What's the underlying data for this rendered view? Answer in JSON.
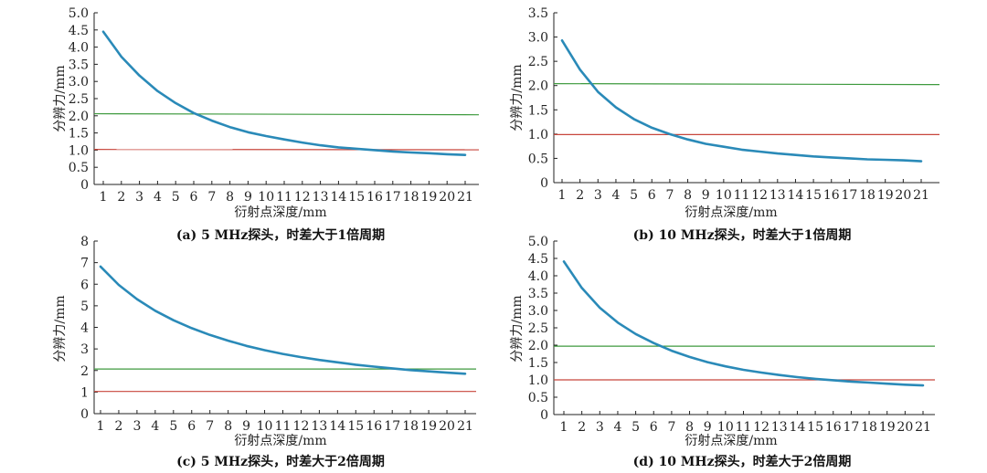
{
  "chart_data": [
    {
      "type": "line",
      "caption": "(a) 5 MHz探头，时差大于1倍周期",
      "xlabel": "衍射点深度/mm",
      "ylabel": "分辨力/mm",
      "x": [
        1,
        2,
        3,
        4,
        5,
        6,
        7,
        8,
        9,
        10,
        11,
        12,
        13,
        14,
        15,
        16,
        17,
        18,
        19,
        20,
        21
      ],
      "ylim": [
        0,
        5.0
      ],
      "yticks": [
        "0",
        "0.5",
        "1.0",
        "1.5",
        "2.0",
        "2.5",
        "3.0",
        "3.5",
        "4.0",
        "4.5",
        "5.0"
      ],
      "ytick_values": [
        0,
        0.5,
        1.0,
        1.5,
        2.0,
        2.5,
        3.0,
        3.5,
        4.0,
        4.5,
        5.0
      ],
      "series": [
        {
          "name": "resolution",
          "color": "#2a8ab8",
          "values": [
            4.45,
            3.72,
            3.17,
            2.72,
            2.37,
            2.08,
            1.86,
            1.67,
            1.52,
            1.41,
            1.31,
            1.22,
            1.14,
            1.08,
            1.04,
            1.0,
            0.96,
            0.93,
            0.91,
            0.88,
            0.86
          ]
        }
      ],
      "hlines": [
        {
          "name": "green-threshold",
          "color": "#3e9a3e",
          "y": [
            2.06,
            2.03
          ]
        },
        {
          "name": "red-threshold",
          "color": "#c8463c",
          "y": [
            1.02,
            1.01
          ]
        }
      ]
    },
    {
      "type": "line",
      "caption": "(b)  10 MHz探头，时差大于1倍周期",
      "xlabel": "衍射点深度/mm",
      "ylabel": "分辨力/mm",
      "x": [
        1,
        2,
        3,
        4,
        5,
        6,
        7,
        8,
        9,
        10,
        11,
        12,
        13,
        14,
        15,
        16,
        17,
        18,
        19,
        20,
        21
      ],
      "ylim": [
        0,
        3.5
      ],
      "yticks": [
        "0",
        "0.5",
        "1.0",
        "1.5",
        "2.0",
        "2.5",
        "3.0",
        "3.5"
      ],
      "ytick_values": [
        0,
        0.5,
        1.0,
        1.5,
        2.0,
        2.5,
        3.0,
        3.5
      ],
      "series": [
        {
          "name": "resolution",
          "color": "#2a8ab8",
          "values": [
            2.93,
            2.33,
            1.87,
            1.55,
            1.31,
            1.13,
            1.0,
            0.89,
            0.8,
            0.74,
            0.68,
            0.64,
            0.6,
            0.57,
            0.54,
            0.52,
            0.5,
            0.48,
            0.47,
            0.46,
            0.44
          ]
        }
      ],
      "hlines": [
        {
          "name": "green-threshold",
          "color": "#3e9a3e",
          "y": [
            2.04,
            2.02
          ]
        },
        {
          "name": "red-threshold",
          "color": "#c8463c",
          "y": [
            0.99,
            0.99
          ]
        }
      ]
    },
    {
      "type": "line",
      "caption": "(c) 5 MHz探头，时差大于2倍周期",
      "xlabel": "衍射点深度/mm",
      "ylabel": "分辨力/mm",
      "x": [
        1,
        2,
        3,
        4,
        5,
        6,
        7,
        8,
        9,
        10,
        11,
        12,
        13,
        14,
        15,
        16,
        17,
        18,
        19,
        20,
        21
      ],
      "ylim": [
        0,
        8
      ],
      "yticks": [
        "0",
        "1",
        "2",
        "3",
        "4",
        "5",
        "6",
        "7",
        "8"
      ],
      "ytick_values": [
        0,
        1,
        2,
        3,
        4,
        5,
        6,
        7,
        8
      ],
      "series": [
        {
          "name": "resolution",
          "color": "#2a8ab8",
          "values": [
            6.82,
            5.97,
            5.31,
            4.77,
            4.33,
            3.96,
            3.65,
            3.38,
            3.14,
            2.94,
            2.77,
            2.62,
            2.49,
            2.38,
            2.27,
            2.18,
            2.1,
            2.02,
            1.96,
            1.9,
            1.85
          ]
        }
      ],
      "hlines": [
        {
          "name": "green-threshold",
          "color": "#3e9a3e",
          "y": [
            2.07,
            2.07
          ]
        },
        {
          "name": "red-threshold",
          "color": "#c8463c",
          "y": [
            1.03,
            1.03
          ]
        }
      ]
    },
    {
      "type": "line",
      "caption": "(d)  10 MHz探头，时差大于2倍周期",
      "xlabel": "衍射点深度/mm",
      "ylabel": "分辨力/mm",
      "x": [
        1,
        2,
        3,
        4,
        5,
        6,
        7,
        8,
        9,
        10,
        11,
        12,
        13,
        14,
        15,
        16,
        17,
        18,
        19,
        20,
        21
      ],
      "ylim": [
        0,
        5.0
      ],
      "yticks": [
        "0",
        "0.5",
        "1.0",
        "1.5",
        "2.0",
        "2.5",
        "3.0",
        "3.5",
        "4.0",
        "4.5",
        "5.0"
      ],
      "ytick_values": [
        0,
        0.5,
        1.0,
        1.5,
        2.0,
        2.5,
        3.0,
        3.5,
        4.0,
        4.5,
        5.0
      ],
      "series": [
        {
          "name": "resolution",
          "color": "#2a8ab8",
          "values": [
            4.41,
            3.65,
            3.08,
            2.65,
            2.32,
            2.06,
            1.84,
            1.66,
            1.51,
            1.39,
            1.29,
            1.21,
            1.14,
            1.08,
            1.03,
            0.99,
            0.95,
            0.92,
            0.89,
            0.86,
            0.84
          ]
        }
      ],
      "hlines": [
        {
          "name": "green-threshold",
          "color": "#3e9a3e",
          "y": [
            1.97,
            1.97
          ]
        },
        {
          "name": "red-threshold",
          "color": "#c8463c",
          "y": [
            1.0,
            1.0
          ]
        }
      ]
    }
  ]
}
